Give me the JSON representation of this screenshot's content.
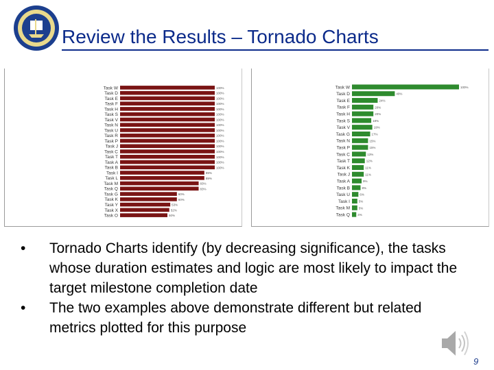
{
  "slide": {
    "title": "Review the Results – Tornado Charts",
    "logo_icon": "navy-seal-icon",
    "bullets": [
      "Tornado Charts identify (by decreasing significance), the tasks whose duration estimates and logic are most likely to impact the target milestone completion date",
      "The two examples above demonstrate different but related metrics plotted for this purpose"
    ],
    "bullet_glyph": "•",
    "page_number": "9",
    "audio_icon": "speaker-icon"
  },
  "chart_data": [
    {
      "type": "bar",
      "orientation": "horizontal",
      "color": "#7a1414",
      "categories": [
        "Task W",
        "Task D",
        "Task E",
        "Task F",
        "Task H",
        "Task S",
        "Task V",
        "Task N",
        "Task U",
        "Task R",
        "Task P",
        "Task J",
        "Task C",
        "Task T",
        "Task A",
        "Task B",
        "Task I",
        "Task L",
        "Task M",
        "Task Q",
        "Task G",
        "Task K",
        "Task Y",
        "Task X",
        "Task O"
      ],
      "values": [
        100,
        100,
        100,
        100,
        100,
        100,
        100,
        100,
        100,
        100,
        100,
        100,
        100,
        100,
        100,
        100,
        89,
        89,
        83,
        83,
        60,
        60,
        53,
        52,
        50
      ]
    },
    {
      "type": "bar",
      "orientation": "horizontal",
      "color": "#2e8b2e",
      "categories": [
        "Task W",
        "Task D",
        "Task E",
        "Task F",
        "Task H",
        "Task S",
        "Task V",
        "Task G",
        "Task N",
        "Task P",
        "Task C",
        "Task T",
        "Task K",
        "Task J",
        "Task A",
        "Task B",
        "Task U",
        "Task I",
        "Task M",
        "Task Q"
      ],
      "values": [
        100,
        40,
        24,
        20,
        20,
        18,
        19,
        17,
        15,
        15,
        13,
        12,
        11,
        11,
        9,
        8,
        6,
        5,
        5,
        4
      ]
    }
  ]
}
